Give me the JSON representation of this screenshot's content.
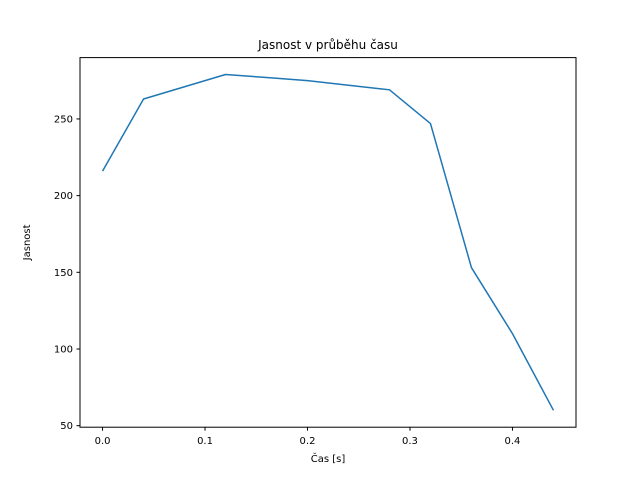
{
  "chart_data": {
    "type": "line",
    "title": "Jasnost v průběhu času",
    "xlabel": "Čas [s]",
    "ylabel": "Jasnost",
    "x": [
      0.0,
      0.04,
      0.08,
      0.12,
      0.16,
      0.2,
      0.24,
      0.28,
      0.32,
      0.36,
      0.4,
      0.44
    ],
    "y": [
      216,
      263,
      271,
      279,
      277,
      275,
      272,
      269,
      247,
      153,
      110,
      60
    ],
    "xlim": [
      -0.022,
      0.462
    ],
    "ylim": [
      49,
      290
    ],
    "xticks": [
      0.0,
      0.1,
      0.2,
      0.3,
      0.4
    ],
    "xtick_labels": [
      "0.0",
      "0.1",
      "0.2",
      "0.3",
      "0.4"
    ],
    "yticks": [
      50,
      100,
      150,
      200,
      250
    ],
    "ytick_labels": [
      "50",
      "100",
      "150",
      "200",
      "250"
    ],
    "line_color": "#1f77b4",
    "axis_color": "#000000",
    "grid": false,
    "legend_position": "none"
  }
}
